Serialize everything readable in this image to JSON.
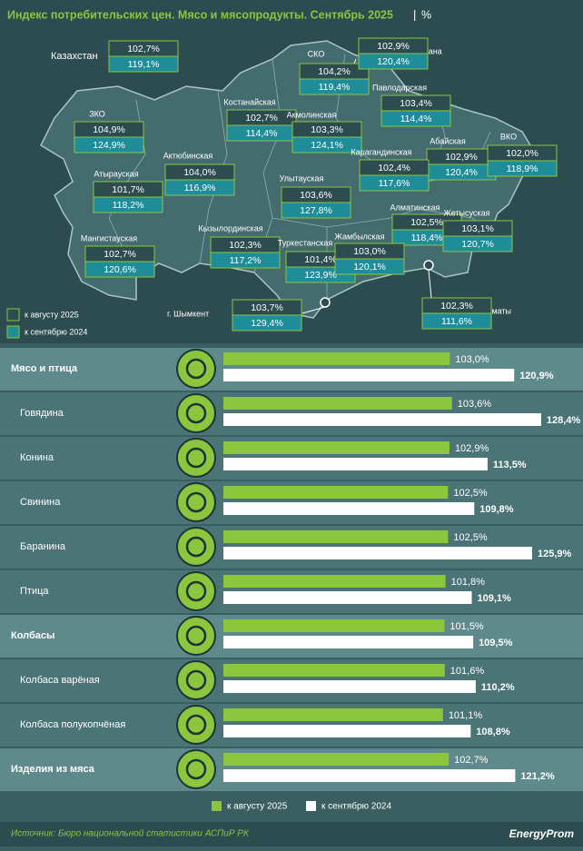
{
  "title": "Индекс потребительских цен. Мясо и мясопродукты. Сентябрь 2025",
  "unit": "%",
  "map": {
    "regions": [
      {
        "name": "Казахстан",
        "aug": "102,7%",
        "sep": "119,1%"
      },
      {
        "name": "СКО",
        "aug": "104,2%",
        "sep": "119,4%"
      },
      {
        "name": "г. Астана",
        "aug": "102,9%",
        "sep": "120,4%"
      },
      {
        "name": "Павлодарская",
        "aug": "103,4%",
        "sep": "114,4%"
      },
      {
        "name": "Костанайская",
        "aug": "102,7%",
        "sep": "114,4%"
      },
      {
        "name": "Акмолинская",
        "aug": "103,3%",
        "sep": "124,1%"
      },
      {
        "name": "ЗКО",
        "aug": "104,9%",
        "sep": "124,9%"
      },
      {
        "name": "Абайская",
        "aug": "102,9%",
        "sep": "120,4%"
      },
      {
        "name": "ВКО",
        "aug": "102,0%",
        "sep": "118,9%"
      },
      {
        "name": "Актюбинская",
        "aug": "104,0%",
        "sep": "116,9%"
      },
      {
        "name": "Карагандинская",
        "aug": "102,4%",
        "sep": "117,6%"
      },
      {
        "name": "Атырауская",
        "aug": "101,7%",
        "sep": "118,2%"
      },
      {
        "name": "Улытауская",
        "aug": "103,6%",
        "sep": "127,8%"
      },
      {
        "name": "Алматинская",
        "aug": "102,5%",
        "sep": "118,4%"
      },
      {
        "name": "Жетысуская",
        "aug": "103,1%",
        "sep": "120,7%"
      },
      {
        "name": "Мангистауская",
        "aug": "102,7%",
        "sep": "120,6%"
      },
      {
        "name": "Кызылординская",
        "aug": "102,3%",
        "sep": "117,2%"
      },
      {
        "name": "Туркестанская",
        "aug": "101,4%",
        "sep": "123,9%"
      },
      {
        "name": "Жамбылская",
        "aug": "103,0%",
        "sep": "120,1%"
      },
      {
        "name": "г. Шымкент",
        "aug": "103,7%",
        "sep": "129,4%"
      },
      {
        "name": "г. Алматы",
        "aug": "102,3%",
        "sep": "111,6%"
      }
    ]
  },
  "chart_data": {
    "type": "hbar",
    "categories": [
      "Мясо и птица",
      "Говядина",
      "Конина",
      "Свинина",
      "Баранина",
      "Птица",
      "Колбасы",
      "Колбаса варёная",
      "Колбаса полукопчёная",
      "Изделия из мяса"
    ],
    "highlight": [
      true,
      false,
      false,
      false,
      false,
      false,
      true,
      false,
      false,
      true
    ],
    "xlim": [
      40,
      135
    ],
    "series": [
      {
        "name": "к августу 2025",
        "color": "#8cc63f",
        "values": [
          103.0,
          103.6,
          102.9,
          102.5,
          102.5,
          101.8,
          101.5,
          101.6,
          101.1,
          102.7
        ],
        "value_labels": [
          "103,0%",
          "103,6%",
          "102,9%",
          "102,5%",
          "102,5%",
          "101,8%",
          "101,5%",
          "101,6%",
          "101,1%",
          "102,7%"
        ]
      },
      {
        "name": "к сентябрю 2024",
        "color": "#ffffff",
        "values": [
          120.9,
          128.4,
          113.5,
          109.8,
          125.9,
          109.1,
          109.5,
          110.2,
          108.8,
          121.2
        ],
        "value_labels": [
          "120,9%",
          "128,4%",
          "113,5%",
          "109,8%",
          "125,9%",
          "109,1%",
          "109,5%",
          "110,2%",
          "108,8%",
          "121,2%"
        ]
      }
    ]
  },
  "source": "Источник: Бюро национальной статистики АСПиР РК",
  "logo": "EnergyProm"
}
